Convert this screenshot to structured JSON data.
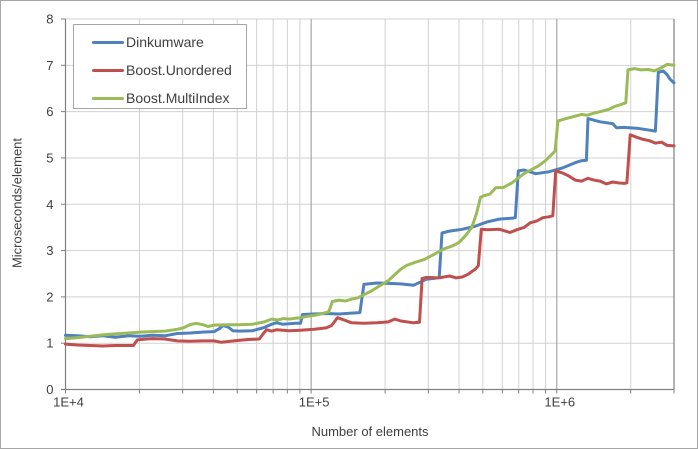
{
  "colors": {
    "background": "#ffffff",
    "figure_border": "#a6a6a6",
    "axis_line": "#808080",
    "grid_minor": "#d2d2d2",
    "grid_major": "#979797",
    "tick_text": "#3f3f3f",
    "legend_border": "#a6a6a6"
  },
  "chart_data": {
    "type": "line",
    "title": "",
    "xlabel": "Number of elements",
    "ylabel": "Microseconds/element",
    "x_scale": "log",
    "xlim": [
      10000,
      3000000
    ],
    "ylim": [
      0,
      8
    ],
    "grid": "horizontal unit lines + log minor/major vertical lines",
    "legend_position": "top-left",
    "x_tick_labels": [
      {
        "value": 10000,
        "label": "1E+4"
      },
      {
        "value": 100000,
        "label": "1E+5"
      },
      {
        "value": 1000000,
        "label": "1E+6"
      }
    ],
    "x_major_gridlines": [
      100000,
      1000000
    ],
    "y_ticks": [
      0,
      1,
      2,
      3,
      4,
      5,
      6,
      7,
      8
    ],
    "series": [
      {
        "name": "Dinkumware",
        "color": "#4F81BD",
        "points": [
          [
            10000,
            1.17
          ],
          [
            11200,
            1.16
          ],
          [
            12600,
            1.14
          ],
          [
            14200,
            1.16
          ],
          [
            15900,
            1.13
          ],
          [
            18000,
            1.16
          ],
          [
            20100,
            1.15
          ],
          [
            22600,
            1.17
          ],
          [
            25400,
            1.16
          ],
          [
            28500,
            1.21
          ],
          [
            32100,
            1.22
          ],
          [
            36000,
            1.24
          ],
          [
            40300,
            1.25
          ],
          [
            42200,
            1.31
          ],
          [
            43800,
            1.38
          ],
          [
            45900,
            1.35
          ],
          [
            48000,
            1.27
          ],
          [
            50900,
            1.26
          ],
          [
            57700,
            1.27
          ],
          [
            64500,
            1.34
          ],
          [
            69000,
            1.41
          ],
          [
            72300,
            1.44
          ],
          [
            76500,
            1.41
          ],
          [
            81300,
            1.42
          ],
          [
            86600,
            1.43
          ],
          [
            90500,
            1.43
          ],
          [
            92200,
            1.62
          ],
          [
            102000,
            1.63
          ],
          [
            115000,
            1.64
          ],
          [
            130000,
            1.63
          ],
          [
            146000,
            1.65
          ],
          [
            158000,
            1.66
          ],
          [
            164000,
            2.27
          ],
          [
            185000,
            2.3
          ],
          [
            206000,
            2.29
          ],
          [
            232000,
            2.28
          ],
          [
            261000,
            2.25
          ],
          [
            294000,
            2.38
          ],
          [
            317000,
            2.4
          ],
          [
            332000,
            2.42
          ],
          [
            341000,
            3.38
          ],
          [
            366000,
            3.42
          ],
          [
            412000,
            3.46
          ],
          [
            462000,
            3.52
          ],
          [
            522000,
            3.62
          ],
          [
            584000,
            3.68
          ],
          [
            660000,
            3.7
          ],
          [
            678000,
            3.71
          ],
          [
            697000,
            4.72
          ],
          [
            736000,
            4.74
          ],
          [
            821000,
            4.66
          ],
          [
            928000,
            4.7
          ],
          [
            1050000,
            4.78
          ],
          [
            1190000,
            4.9
          ],
          [
            1260000,
            4.94
          ],
          [
            1320000,
            4.95
          ],
          [
            1340000,
            5.85
          ],
          [
            1500000,
            5.78
          ],
          [
            1690000,
            5.74
          ],
          [
            1750000,
            5.65
          ],
          [
            1880000,
            5.66
          ],
          [
            2130000,
            5.64
          ],
          [
            2390000,
            5.6
          ],
          [
            2520000,
            5.58
          ],
          [
            2590000,
            6.85
          ],
          [
            2710000,
            6.88
          ],
          [
            2810000,
            6.8
          ],
          [
            2890000,
            6.7
          ],
          [
            3000000,
            6.62
          ]
        ]
      },
      {
        "name": "Boost.Unordered",
        "color": "#C0504D",
        "points": [
          [
            10000,
            0.98
          ],
          [
            11200,
            0.96
          ],
          [
            12600,
            0.95
          ],
          [
            14200,
            0.94
          ],
          [
            15900,
            0.95
          ],
          [
            18900,
            0.95
          ],
          [
            19600,
            1.07
          ],
          [
            21400,
            1.09
          ],
          [
            22600,
            1.1
          ],
          [
            25400,
            1.09
          ],
          [
            28500,
            1.05
          ],
          [
            32100,
            1.04
          ],
          [
            36000,
            1.05
          ],
          [
            40300,
            1.05
          ],
          [
            43100,
            1.02
          ],
          [
            48400,
            1.05
          ],
          [
            55300,
            1.08
          ],
          [
            61500,
            1.09
          ],
          [
            63900,
            1.21
          ],
          [
            65800,
            1.29
          ],
          [
            69000,
            1.26
          ],
          [
            72300,
            1.29
          ],
          [
            81300,
            1.27
          ],
          [
            90500,
            1.28
          ],
          [
            103000,
            1.3
          ],
          [
            115000,
            1.33
          ],
          [
            121000,
            1.38
          ],
          [
            128000,
            1.55
          ],
          [
            138000,
            1.49
          ],
          [
            146000,
            1.44
          ],
          [
            164000,
            1.43
          ],
          [
            185000,
            1.44
          ],
          [
            206000,
            1.46
          ],
          [
            219000,
            1.52
          ],
          [
            232000,
            1.48
          ],
          [
            261000,
            1.44
          ],
          [
            276000,
            1.45
          ],
          [
            283000,
            2.4
          ],
          [
            294000,
            2.42
          ],
          [
            331000,
            2.41
          ],
          [
            366000,
            2.45
          ],
          [
            390000,
            2.41
          ],
          [
            412000,
            2.43
          ],
          [
            436000,
            2.49
          ],
          [
            466000,
            2.6
          ],
          [
            479000,
            2.67
          ],
          [
            493000,
            3.46
          ],
          [
            522000,
            3.45
          ],
          [
            584000,
            3.46
          ],
          [
            645000,
            3.39
          ],
          [
            688000,
            3.45
          ],
          [
            736000,
            3.5
          ],
          [
            779000,
            3.6
          ],
          [
            830000,
            3.64
          ],
          [
            877000,
            3.71
          ],
          [
            928000,
            3.73
          ],
          [
            963000,
            3.75
          ],
          [
            990000,
            4.72
          ],
          [
            1050000,
            4.68
          ],
          [
            1110000,
            4.62
          ],
          [
            1190000,
            4.52
          ],
          [
            1260000,
            4.5
          ],
          [
            1340000,
            4.56
          ],
          [
            1420000,
            4.52
          ],
          [
            1500000,
            4.5
          ],
          [
            1590000,
            4.44
          ],
          [
            1690000,
            4.48
          ],
          [
            1780000,
            4.46
          ],
          [
            1880000,
            4.45
          ],
          [
            1930000,
            4.46
          ],
          [
            1990000,
            5.5
          ],
          [
            2130000,
            5.44
          ],
          [
            2250000,
            5.4
          ],
          [
            2390000,
            5.37
          ],
          [
            2520000,
            5.32
          ],
          [
            2670000,
            5.34
          ],
          [
            2810000,
            5.27
          ],
          [
            3000000,
            5.26
          ]
        ]
      },
      {
        "name": "Boost.MultiIndex",
        "color": "#9BBB59",
        "points": [
          [
            10000,
            1.1
          ],
          [
            11200,
            1.12
          ],
          [
            12600,
            1.15
          ],
          [
            14200,
            1.18
          ],
          [
            15900,
            1.2
          ],
          [
            18000,
            1.22
          ],
          [
            20100,
            1.24
          ],
          [
            22600,
            1.25
          ],
          [
            25400,
            1.26
          ],
          [
            28500,
            1.3
          ],
          [
            30200,
            1.33
          ],
          [
            32100,
            1.4
          ],
          [
            34000,
            1.43
          ],
          [
            36300,
            1.4
          ],
          [
            38000,
            1.36
          ],
          [
            40300,
            1.39
          ],
          [
            45500,
            1.4
          ],
          [
            50900,
            1.4
          ],
          [
            57700,
            1.41
          ],
          [
            64500,
            1.46
          ],
          [
            69000,
            1.52
          ],
          [
            73000,
            1.5
          ],
          [
            77200,
            1.53
          ],
          [
            81300,
            1.52
          ],
          [
            86200,
            1.54
          ],
          [
            90500,
            1.55
          ],
          [
            96600,
            1.58
          ],
          [
            103000,
            1.6
          ],
          [
            109000,
            1.63
          ],
          [
            115000,
            1.66
          ],
          [
            118000,
            1.68
          ],
          [
            122000,
            1.9
          ],
          [
            130000,
            1.93
          ],
          [
            138000,
            1.91
          ],
          [
            146000,
            1.95
          ],
          [
            155000,
            1.98
          ],
          [
            164000,
            2.05
          ],
          [
            175000,
            2.12
          ],
          [
            185000,
            2.2
          ],
          [
            196000,
            2.28
          ],
          [
            206000,
            2.35
          ],
          [
            219000,
            2.48
          ],
          [
            232000,
            2.6
          ],
          [
            245000,
            2.68
          ],
          [
            263000,
            2.74
          ],
          [
            289000,
            2.81
          ],
          [
            317000,
            2.92
          ],
          [
            345000,
            3.03
          ],
          [
            376000,
            3.1
          ],
          [
            399000,
            3.17
          ],
          [
            426000,
            3.33
          ],
          [
            451000,
            3.5
          ],
          [
            471000,
            3.8
          ],
          [
            489000,
            4.15
          ],
          [
            502000,
            4.18
          ],
          [
            534000,
            4.22
          ],
          [
            565000,
            4.36
          ],
          [
            605000,
            4.36
          ],
          [
            660000,
            4.47
          ],
          [
            697000,
            4.57
          ],
          [
            744000,
            4.68
          ],
          [
            796000,
            4.76
          ],
          [
            843000,
            4.83
          ],
          [
            899000,
            4.94
          ],
          [
            956000,
            5.08
          ],
          [
            984000,
            5.15
          ],
          [
            1010000,
            5.8
          ],
          [
            1110000,
            5.86
          ],
          [
            1180000,
            5.9
          ],
          [
            1260000,
            5.94
          ],
          [
            1330000,
            5.92
          ],
          [
            1420000,
            5.97
          ],
          [
            1530000,
            6.01
          ],
          [
            1630000,
            6.05
          ],
          [
            1720000,
            6.11
          ],
          [
            1840000,
            6.16
          ],
          [
            1910000,
            6.19
          ],
          [
            1950000,
            6.9
          ],
          [
            2070000,
            6.93
          ],
          [
            2200000,
            6.9
          ],
          [
            2360000,
            6.91
          ],
          [
            2500000,
            6.88
          ],
          [
            2670000,
            6.95
          ],
          [
            2810000,
            7.02
          ],
          [
            3000000,
            7.0
          ]
        ]
      }
    ]
  }
}
